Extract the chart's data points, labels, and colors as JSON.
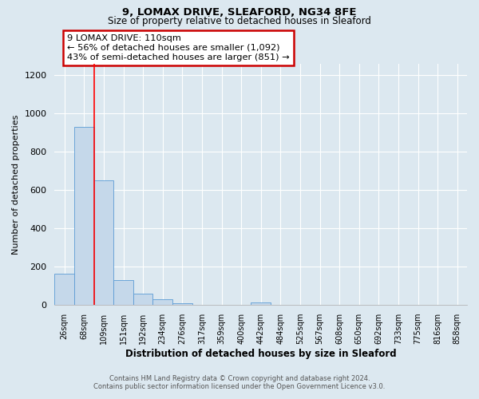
{
  "title_line1": "9, LOMAX DRIVE, SLEAFORD, NG34 8FE",
  "title_line2": "Size of property relative to detached houses in Sleaford",
  "xlabel": "Distribution of detached houses by size in Sleaford",
  "ylabel": "Number of detached properties",
  "bar_labels": [
    "26sqm",
    "68sqm",
    "109sqm",
    "151sqm",
    "192sqm",
    "234sqm",
    "276sqm",
    "317sqm",
    "359sqm",
    "400sqm",
    "442sqm",
    "484sqm",
    "525sqm",
    "567sqm",
    "608sqm",
    "650sqm",
    "692sqm",
    "733sqm",
    "775sqm",
    "816sqm",
    "858sqm"
  ],
  "bar_values": [
    165,
    930,
    650,
    130,
    60,
    28,
    10,
    0,
    0,
    0,
    15,
    0,
    0,
    0,
    0,
    0,
    0,
    0,
    0,
    0,
    0
  ],
  "bar_color": "#c5d8ea",
  "bar_edge_color": "#5b9bd5",
  "red_line_x": 1.5,
  "ylim": [
    0,
    1260
  ],
  "yticks": [
    0,
    200,
    400,
    600,
    800,
    1000,
    1200
  ],
  "annotation_title": "9 LOMAX DRIVE: 110sqm",
  "annotation_line1": "← 56% of detached houses are smaller (1,092)",
  "annotation_line2": "43% of semi-detached houses are larger (851) →",
  "annotation_box_edge_color": "#cc0000",
  "footnote_line1": "Contains HM Land Registry data © Crown copyright and database right 2024.",
  "footnote_line2": "Contains public sector information licensed under the Open Government Licence v3.0.",
  "fig_background_color": "#dce8f0",
  "plot_background_color": "#dce8f0",
  "grid_color": "#ffffff"
}
